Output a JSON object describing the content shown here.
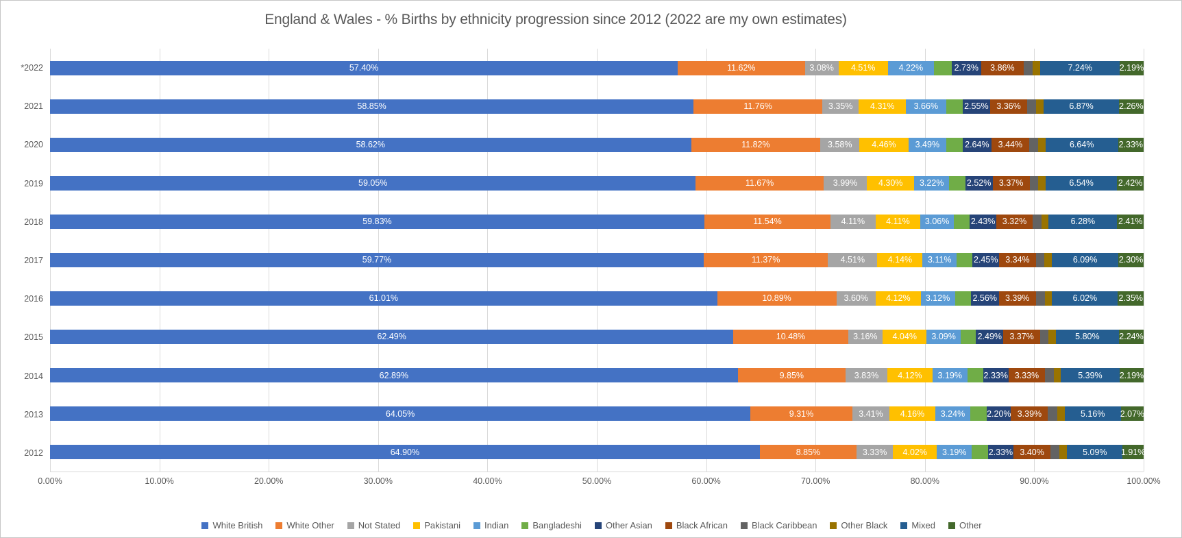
{
  "chart_data": {
    "type": "bar",
    "stacked": true,
    "orientation": "horizontal",
    "title": "England & Wales - % Births by ethnicity progression since 2012 (2022 are my own estimates)",
    "legend_position": "bottom",
    "grid": "vertical",
    "x_axis": {
      "min": 0,
      "max": 100,
      "tick_step": 10,
      "tick_labels": [
        "0.00%",
        "10.00%",
        "20.00%",
        "30.00%",
        "40.00%",
        "50.00%",
        "60.00%",
        "70.00%",
        "80.00%",
        "90.00%",
        "100.00%"
      ]
    },
    "series": [
      {
        "name": "White British",
        "color": "#4472C4"
      },
      {
        "name": "White Other",
        "color": "#ED7D31"
      },
      {
        "name": "Not Stated",
        "color": "#A5A5A5"
      },
      {
        "name": "Pakistani",
        "color": "#FFC000"
      },
      {
        "name": "Indian",
        "color": "#5B9BD5"
      },
      {
        "name": "Bangladeshi",
        "color": "#70AD47"
      },
      {
        "name": "Other Asian",
        "color": "#264478"
      },
      {
        "name": "Black African",
        "color": "#9E480E"
      },
      {
        "name": "Black Caribbean",
        "color": "#636363"
      },
      {
        "name": "Other Black",
        "color": "#997300"
      },
      {
        "name": "Mixed",
        "color": "#255E91"
      },
      {
        "name": "Other",
        "color": "#43682B"
      }
    ],
    "label_visible": [
      true,
      true,
      true,
      true,
      true,
      false,
      true,
      true,
      false,
      false,
      true,
      true
    ],
    "rows": [
      {
        "year": "*2022",
        "values": [
          57.4,
          11.62,
          3.08,
          4.51,
          4.22,
          1.6,
          2.73,
          3.86,
          0.85,
          0.7,
          7.24,
          2.19
        ]
      },
      {
        "year": "2021",
        "values": [
          58.85,
          11.76,
          3.35,
          4.31,
          3.66,
          1.5,
          2.55,
          3.36,
          0.85,
          0.68,
          6.87,
          2.26
        ]
      },
      {
        "year": "2020",
        "values": [
          58.62,
          11.82,
          3.58,
          4.46,
          3.49,
          1.48,
          2.64,
          3.44,
          0.82,
          0.68,
          6.64,
          2.33
        ]
      },
      {
        "year": "2019",
        "values": [
          59.05,
          11.67,
          3.99,
          4.3,
          3.22,
          1.45,
          2.52,
          3.37,
          0.8,
          0.67,
          6.54,
          2.42
        ]
      },
      {
        "year": "2018",
        "values": [
          59.83,
          11.54,
          4.11,
          4.11,
          3.06,
          1.45,
          2.43,
          3.32,
          0.8,
          0.66,
          6.28,
          2.41
        ]
      },
      {
        "year": "2017",
        "values": [
          59.77,
          11.37,
          4.51,
          4.14,
          3.11,
          1.45,
          2.45,
          3.34,
          0.8,
          0.67,
          6.09,
          2.3
        ]
      },
      {
        "year": "2016",
        "values": [
          61.01,
          10.89,
          3.6,
          4.12,
          3.12,
          1.46,
          2.56,
          3.39,
          0.81,
          0.67,
          6.02,
          2.35
        ]
      },
      {
        "year": "2015",
        "values": [
          62.49,
          10.48,
          3.16,
          4.04,
          3.09,
          1.42,
          2.49,
          3.37,
          0.78,
          0.64,
          5.8,
          2.24
        ]
      },
      {
        "year": "2014",
        "values": [
          62.89,
          9.85,
          3.83,
          4.12,
          3.19,
          1.44,
          2.33,
          3.33,
          0.79,
          0.65,
          5.39,
          2.19
        ]
      },
      {
        "year": "2013",
        "values": [
          64.05,
          9.31,
          3.41,
          4.16,
          3.24,
          1.5,
          2.2,
          3.39,
          0.83,
          0.68,
          5.16,
          2.07
        ]
      },
      {
        "year": "2012",
        "values": [
          64.9,
          8.85,
          3.33,
          4.02,
          3.19,
          1.48,
          2.33,
          3.4,
          0.82,
          0.68,
          5.09,
          1.91
        ]
      }
    ]
  }
}
